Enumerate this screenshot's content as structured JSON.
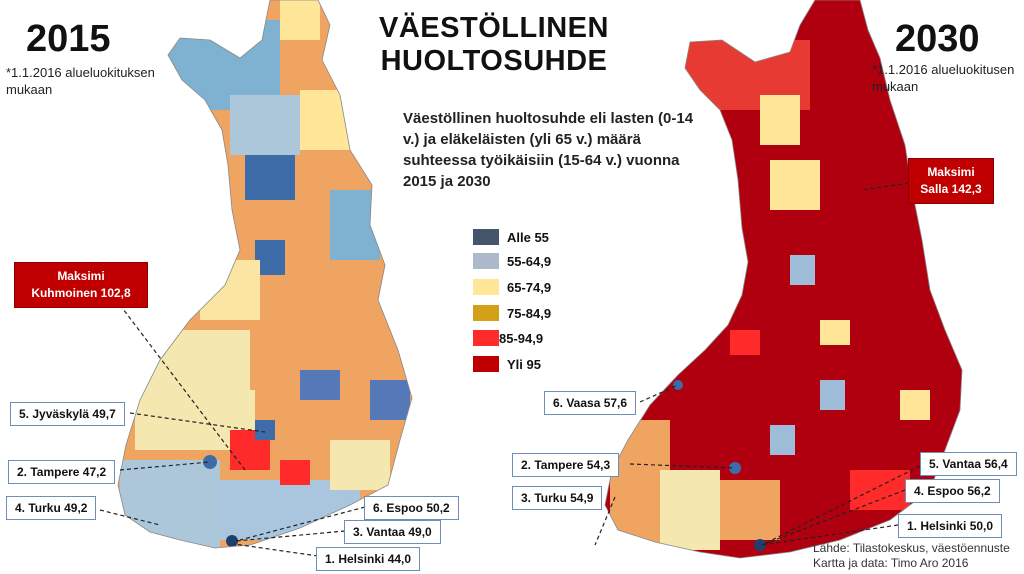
{
  "title": {
    "line1": "VÄESTÖLLINEN",
    "line2": "HUOLTOSUHDE"
  },
  "description": "Väestöllinen huoltosuhde eli lasten (0-14 v.) ja eläkeläisten (yli 65 v.) määrä suhteessa työikäisiin (15-64 v.) vuonna 2015 ja 2030",
  "left": {
    "year": "2015",
    "note": "*1.1.2016 alueluokituksen mukaan",
    "max_line1": "Maksimi",
    "max_line2": "Kuhmoinen 102,8",
    "callouts": [
      "5. Jyväskylä 49,7",
      "2. Tampere 47,2",
      "4. Turku 49,2",
      "6. Espoo 50,2",
      "3. Vantaa 49,0",
      "1. Helsinki 44,0"
    ]
  },
  "right": {
    "year": "2030",
    "note": "*1.1.2016 alueluokitusen mukaan",
    "max_line1": "Maksimi",
    "max_line2": "Salla 142,3",
    "callouts": [
      "6. Vaasa 57,6",
      "2. Tampere 54,3",
      "3. Turku 54,9",
      "5. Vantaa 56,4",
      "4. Espoo 56,2",
      "1. Helsinki 50,0"
    ]
  },
  "legend": [
    {
      "label": "Alle 55",
      "color": "#44546a"
    },
    {
      "label": "55-64,9",
      "color": "#adb9ca"
    },
    {
      "label": "65-74,9",
      "color": "#ffe699"
    },
    {
      "label": "75-84,9",
      "color": "#d4a017"
    },
    {
      "label": "85-94,9",
      "color": "#ff2a2a"
    },
    {
      "label": "Yli 95",
      "color": "#c00000"
    }
  ],
  "source": {
    "line1": "Lähde: Tilastokeskus, väestöennuste",
    "line2": "Kartta ja data: Timo Aro 2016"
  }
}
